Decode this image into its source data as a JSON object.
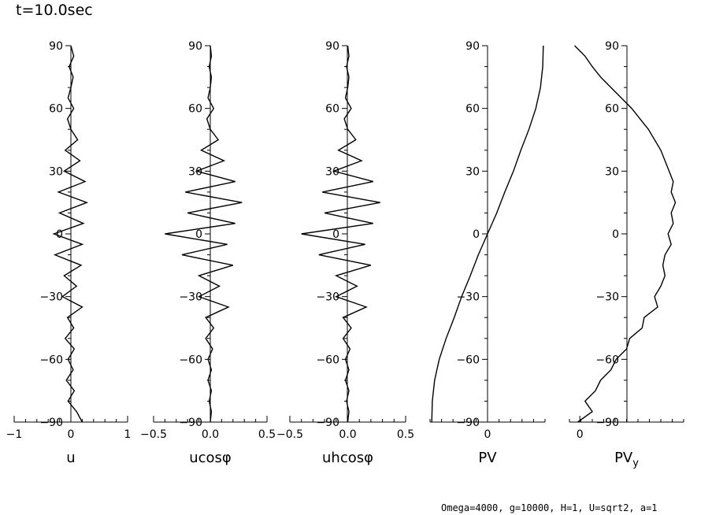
{
  "header": {
    "time_label": "t=10.0sec"
  },
  "footer": {
    "params": "Omega=4000, g=10000, H=1, U=sqrt2, a=1"
  },
  "chart_data": [
    {
      "type": "line",
      "xlabel": "u",
      "xlim": [
        -1,
        1
      ],
      "xticks": [
        "-1",
        "0",
        "1"
      ],
      "xtick_values": [
        -1,
        0,
        1
      ],
      "ylim": [
        -90,
        90
      ],
      "yticks": [
        "90",
        "60",
        "30",
        "0",
        "-30",
        "-60",
        "-90"
      ],
      "lat": [
        90,
        85,
        80,
        75,
        70,
        65,
        60,
        55,
        50,
        45,
        40,
        35,
        30,
        25,
        20,
        15,
        10,
        5,
        0,
        -5,
        -10,
        -15,
        -20,
        -25,
        -30,
        -35,
        -40,
        -45,
        -50,
        -55,
        -60,
        -65,
        -70,
        -75,
        -80,
        -85,
        -90
      ],
      "values": [
        0.0,
        0.05,
        -0.03,
        0.04,
        0.0,
        -0.05,
        0.05,
        -0.06,
        0.0,
        0.12,
        -0.1,
        0.16,
        -0.12,
        0.25,
        -0.22,
        0.28,
        -0.2,
        0.22,
        -0.3,
        0.2,
        -0.28,
        0.18,
        -0.12,
        0.1,
        -0.15,
        0.2,
        -0.06,
        0.05,
        -0.1,
        0.06,
        -0.05,
        0.04,
        -0.08,
        0.06,
        -0.05,
        0.1,
        0.2
      ]
    },
    {
      "type": "line",
      "xlabel": "ucosφ",
      "xlim": [
        -0.5,
        0.5
      ],
      "xticks": [
        "-0.5",
        "0.0",
        "0.5"
      ],
      "xtick_values": [
        -0.5,
        0,
        0.5
      ],
      "ylim": [
        -90,
        90
      ],
      "yticks": [
        "90",
        "60",
        "30",
        "0",
        "-30",
        "-60",
        "-90"
      ],
      "lat": [
        90,
        85,
        80,
        75,
        70,
        65,
        60,
        55,
        50,
        45,
        40,
        35,
        30,
        25,
        20,
        15,
        10,
        5,
        0,
        -5,
        -10,
        -15,
        -20,
        -25,
        -30,
        -35,
        -40,
        -45,
        -50,
        -55,
        -60,
        -65,
        -70,
        -75,
        -80,
        -85,
        -90
      ],
      "values": [
        0.0,
        0.01,
        -0.01,
        0.01,
        0.0,
        -0.02,
        0.03,
        -0.03,
        0.0,
        0.07,
        -0.08,
        0.12,
        -0.12,
        0.22,
        -0.22,
        0.28,
        -0.2,
        0.22,
        -0.4,
        0.15,
        -0.25,
        0.2,
        -0.1,
        0.08,
        -0.1,
        0.16,
        -0.04,
        0.03,
        -0.04,
        0.02,
        -0.02,
        0.01,
        -0.02,
        0.01,
        -0.01,
        0.01,
        0.0
      ]
    },
    {
      "type": "line",
      "xlabel": "uhcosφ",
      "xlim": [
        -0.5,
        0.5
      ],
      "xticks": [
        "-0.5",
        "0.0",
        "0.5"
      ],
      "xtick_values": [
        -0.5,
        0,
        0.5
      ],
      "ylim": [
        -90,
        90
      ],
      "yticks": [
        "90",
        "60",
        "30",
        "0",
        "-30",
        "-60",
        "-90"
      ],
      "lat": [
        90,
        85,
        80,
        75,
        70,
        65,
        60,
        55,
        50,
        45,
        40,
        35,
        30,
        25,
        20,
        15,
        10,
        5,
        0,
        -5,
        -10,
        -15,
        -20,
        -25,
        -30,
        -35,
        -40,
        -45,
        -50,
        -55,
        -60,
        -65,
        -70,
        -75,
        -80,
        -85,
        -90
      ],
      "values": [
        0.0,
        0.01,
        -0.01,
        0.01,
        0.0,
        -0.02,
        0.03,
        -0.03,
        0.0,
        0.07,
        -0.08,
        0.12,
        -0.12,
        0.22,
        -0.22,
        0.28,
        -0.2,
        0.22,
        -0.4,
        0.15,
        -0.25,
        0.2,
        -0.1,
        0.08,
        -0.1,
        0.16,
        -0.04,
        0.03,
        -0.04,
        0.02,
        -0.02,
        0.01,
        -0.02,
        0.01,
        -0.01,
        0.01,
        0.0
      ]
    },
    {
      "type": "line",
      "xlabel": "PV",
      "xlim": [
        -1,
        1
      ],
      "xticks": [
        "0"
      ],
      "xtick_values": [
        0
      ],
      "ylim": [
        -90,
        90
      ],
      "yticks": [
        "90",
        "60",
        "30",
        "0",
        "-30",
        "-60",
        "-90"
      ],
      "lat": [
        90,
        80,
        70,
        60,
        50,
        40,
        30,
        20,
        10,
        0,
        -10,
        -20,
        -30,
        -40,
        -50,
        -60,
        -70,
        -80,
        -90
      ],
      "values": [
        0.97,
        0.96,
        0.92,
        0.84,
        0.72,
        0.58,
        0.45,
        0.3,
        0.16,
        0.0,
        -0.16,
        -0.3,
        -0.45,
        -0.58,
        -0.72,
        -0.84,
        -0.92,
        -0.96,
        -0.97
      ]
    },
    {
      "type": "line",
      "xlabel": "PV",
      "xlabel_sub": "y",
      "xlim": [
        -0.1,
        1
      ],
      "xticks": [
        "0"
      ],
      "xtick_values": [
        0
      ],
      "ylim": [
        -90,
        90
      ],
      "yticks": [
        "90",
        "60",
        "30",
        "0",
        "-30",
        "-60",
        "-90"
      ],
      "lat": [
        90,
        85,
        80,
        75,
        70,
        65,
        60,
        55,
        50,
        45,
        40,
        35,
        30,
        25,
        20,
        15,
        10,
        5,
        0,
        -5,
        -10,
        -15,
        -20,
        -25,
        -30,
        -35,
        -40,
        -45,
        -50,
        -55,
        -60,
        -65,
        -70,
        -75,
        -80,
        -85,
        -90
      ],
      "values": [
        -0.05,
        0.05,
        0.12,
        0.2,
        0.3,
        0.4,
        0.5,
        0.58,
        0.66,
        0.72,
        0.78,
        0.82,
        0.86,
        0.9,
        0.88,
        0.92,
        0.88,
        0.9,
        0.85,
        0.88,
        0.82,
        0.8,
        0.82,
        0.78,
        0.72,
        0.75,
        0.62,
        0.6,
        0.48,
        0.45,
        0.35,
        0.3,
        0.2,
        0.15,
        0.05,
        0.12,
        -0.02
      ]
    }
  ]
}
